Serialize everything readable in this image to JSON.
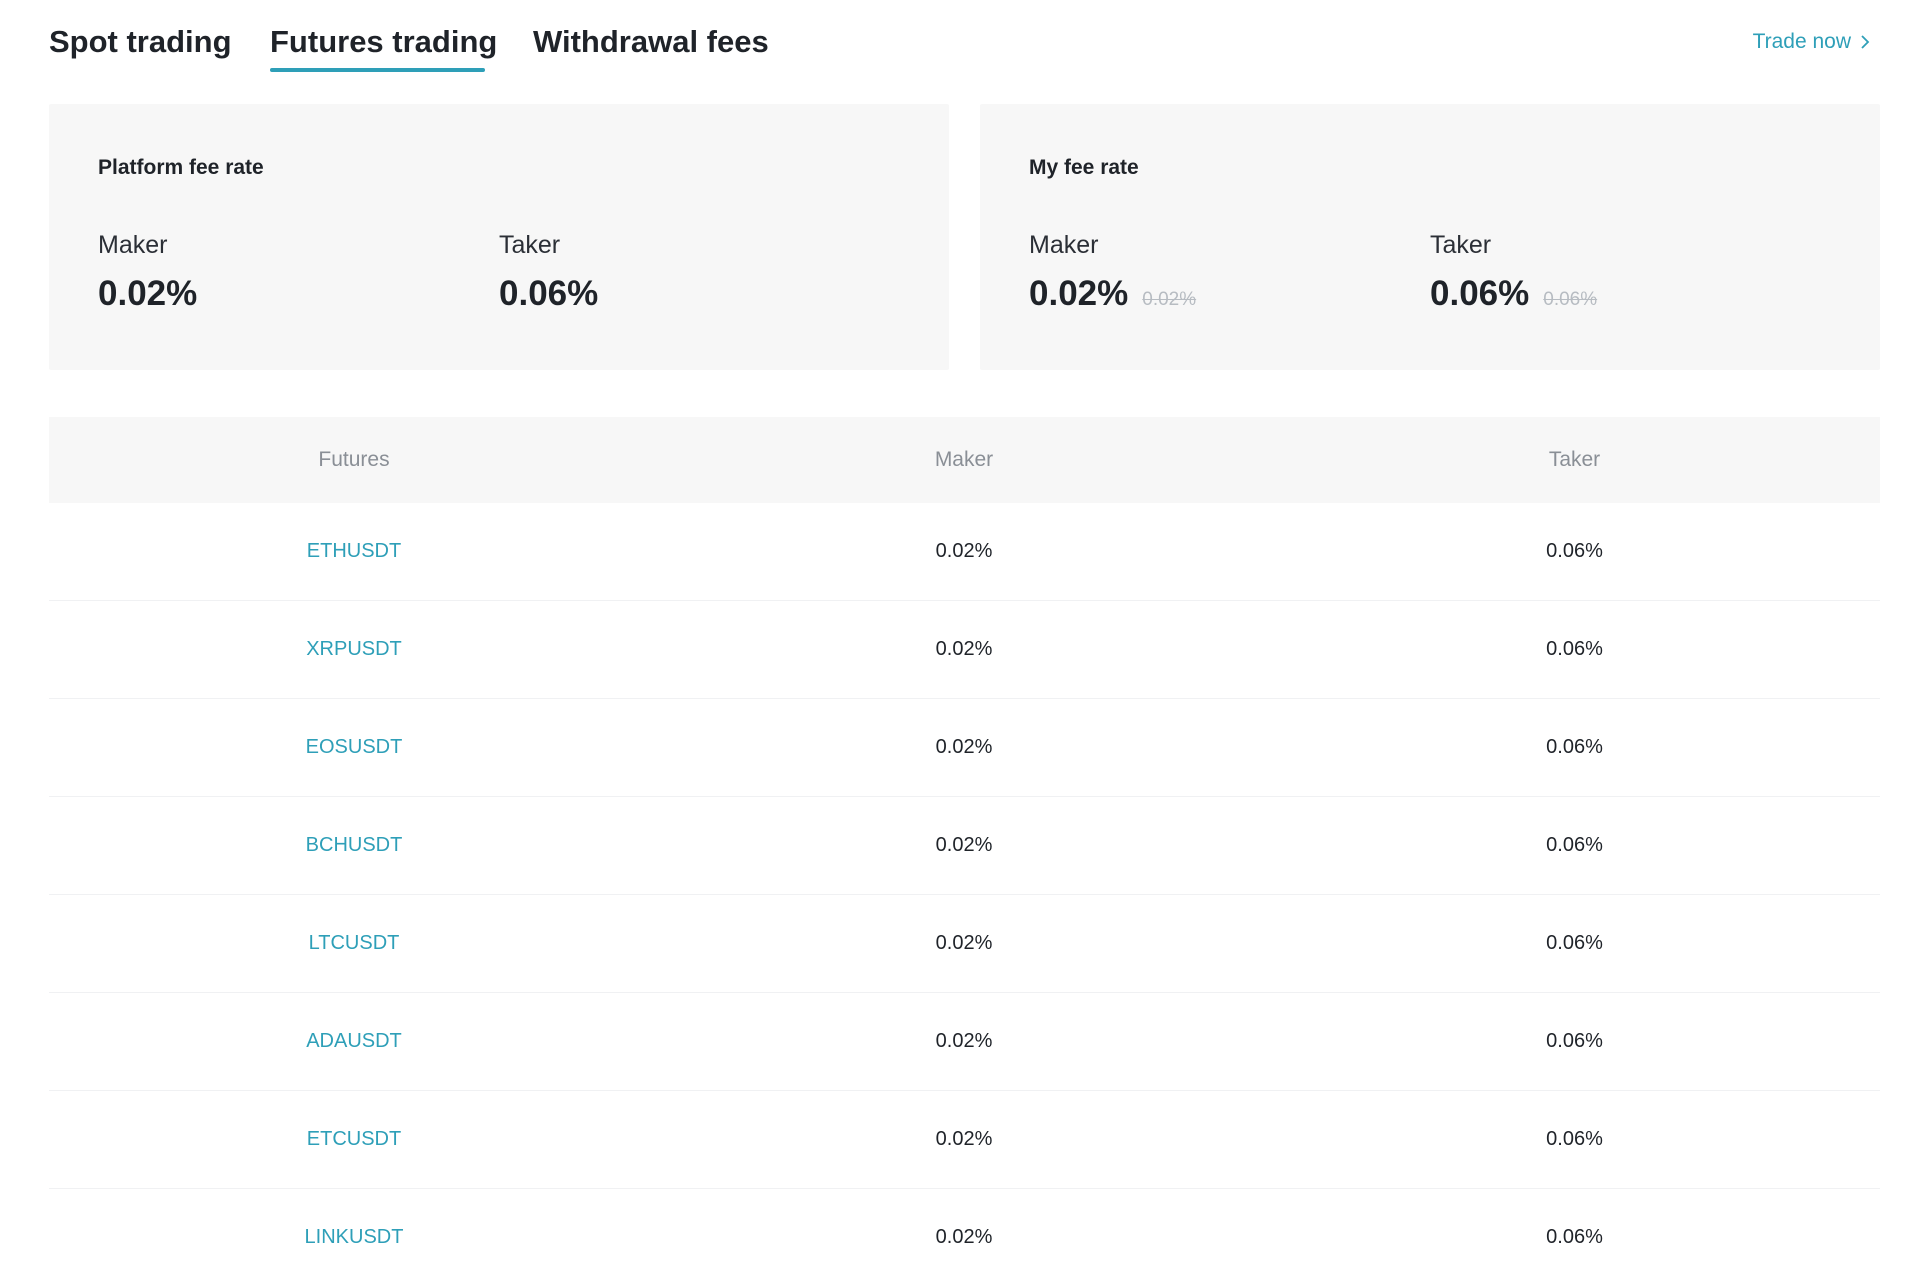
{
  "tabs": [
    {
      "label": "Spot trading",
      "active": false
    },
    {
      "label": "Futures trading",
      "active": true
    },
    {
      "label": "Withdrawal fees",
      "active": false
    }
  ],
  "trade_now": {
    "label": "Trade now",
    "icon": "chevron-right-icon"
  },
  "platform_fee": {
    "title": "Platform fee rate",
    "maker_label": "Maker",
    "maker_value": "0.02%",
    "taker_label": "Taker",
    "taker_value": "0.06%"
  },
  "my_fee": {
    "title": "My fee rate",
    "maker_label": "Maker",
    "maker_value": "0.02%",
    "maker_old": "0.02%",
    "taker_label": "Taker",
    "taker_value": "0.06%",
    "taker_old": "0.06%"
  },
  "table": {
    "headers": [
      "Futures",
      "Maker",
      "Taker"
    ],
    "rows": [
      {
        "pair": "ETHUSDT",
        "maker": "0.02%",
        "taker": "0.06%"
      },
      {
        "pair": "XRPUSDT",
        "maker": "0.02%",
        "taker": "0.06%"
      },
      {
        "pair": "EOSUSDT",
        "maker": "0.02%",
        "taker": "0.06%"
      },
      {
        "pair": "BCHUSDT",
        "maker": "0.02%",
        "taker": "0.06%"
      },
      {
        "pair": "LTCUSDT",
        "maker": "0.02%",
        "taker": "0.06%"
      },
      {
        "pair": "ADAUSDT",
        "maker": "0.02%",
        "taker": "0.06%"
      },
      {
        "pair": "ETCUSDT",
        "maker": "0.02%",
        "taker": "0.06%"
      },
      {
        "pair": "LINKUSDT",
        "maker": "0.02%",
        "taker": "0.06%"
      }
    ]
  },
  "colors": {
    "accent": "#2e9fb8",
    "card_bg": "#f7f7f7",
    "text": "#1f2329",
    "muted": "#8a8f96"
  }
}
